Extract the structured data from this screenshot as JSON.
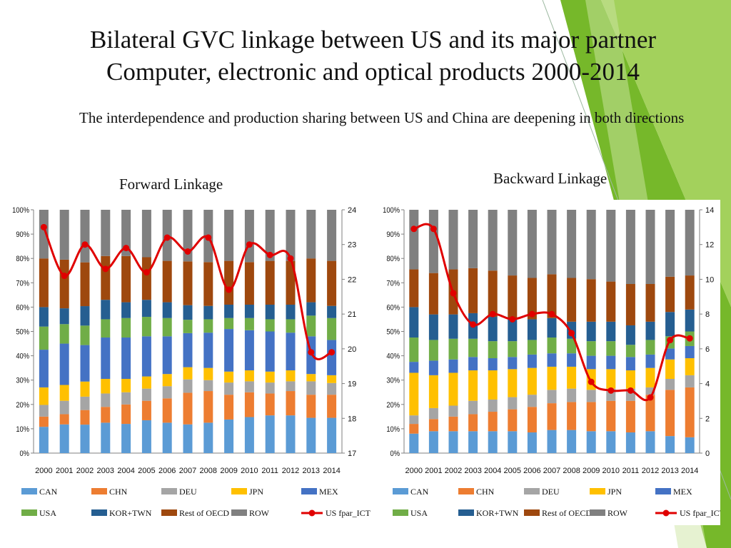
{
  "slide": {
    "title_line1": "Bilateral GVC linkage between US and its major partner",
    "title_line2": "Computer, electronic and optical products 2000-2014",
    "subtitle": "The interdependence and production sharing between US and China are deepening in both directions",
    "colors": {
      "green_dark": "#76b82a",
      "green_light": "#a3d15c"
    }
  },
  "chart_data": [
    {
      "type": "bar",
      "stacked": true,
      "title": "Forward Linkage",
      "categories": [
        "2000",
        "2001",
        "2002",
        "2003",
        "2004",
        "2005",
        "2006",
        "2007",
        "2008",
        "2009",
        "2010",
        "2011",
        "2012",
        "2013",
        "2014"
      ],
      "ylim": [
        0,
        100
      ],
      "y_ticks": [
        "0%",
        "10%",
        "20%",
        "30%",
        "40%",
        "50%",
        "60%",
        "70%",
        "80%",
        "90%",
        "100%"
      ],
      "y2lim": [
        17,
        24
      ],
      "y2_ticks": [
        "17",
        "18",
        "19",
        "20",
        "21",
        "22",
        "23",
        "24"
      ],
      "series": [
        {
          "name": "CAN",
          "color": "#5b9bd5",
          "values": [
            10.8,
            11.8,
            11.7,
            12.5,
            12.0,
            13.5,
            12.5,
            11.8,
            12.5,
            13.8,
            14.8,
            15.5,
            15.5,
            14.5,
            14.5
          ]
        },
        {
          "name": "CHN",
          "color": "#ed7d31",
          "values": [
            4.2,
            4.2,
            6.0,
            6.5,
            8.0,
            8.0,
            10.0,
            13.0,
            13.0,
            10.2,
            10.2,
            9.0,
            10.0,
            9.5,
            9.5
          ]
        },
        {
          "name": "DEU",
          "color": "#a5a5a5",
          "values": [
            4.8,
            5.5,
            5.5,
            5.5,
            5.0,
            5.0,
            5.0,
            5.5,
            4.5,
            5.0,
            4.5,
            4.5,
            4.0,
            5.5,
            4.8
          ]
        },
        {
          "name": "JPN",
          "color": "#ffc000",
          "values": [
            7.2,
            6.5,
            6.2,
            6.0,
            5.5,
            5.0,
            5.0,
            5.0,
            5.0,
            4.5,
            4.5,
            4.5,
            4.5,
            3.0,
            3.2
          ]
        },
        {
          "name": "MEX",
          "color": "#4472c4",
          "values": [
            15.5,
            17.0,
            15.0,
            17.0,
            17.0,
            16.5,
            15.5,
            14.0,
            14.5,
            17.5,
            16.5,
            16.5,
            15.5,
            15.5,
            14.5
          ]
        },
        {
          "name": "USA",
          "color": "#70ad47",
          "values": [
            9.5,
            8.0,
            8.0,
            7.5,
            8.0,
            8.0,
            7.5,
            5.5,
            5.5,
            4.5,
            5.0,
            5.0,
            5.5,
            8.5,
            9.0
          ]
        },
        {
          "name": "KOR+TWN",
          "color": "#255e91",
          "values": [
            8.0,
            6.5,
            8.0,
            8.0,
            6.5,
            7.0,
            6.5,
            6.0,
            5.5,
            5.5,
            5.5,
            6.0,
            6.0,
            5.5,
            5.0
          ]
        },
        {
          "name": "Rest of OECD",
          "color": "#9e480e",
          "values": [
            20.0,
            20.0,
            18.0,
            18.0,
            19.0,
            17.5,
            17.0,
            18.0,
            18.0,
            18.0,
            17.5,
            18.0,
            18.0,
            18.0,
            18.5
          ]
        },
        {
          "name": "ROW",
          "color": "#808080",
          "values": [
            20.0,
            20.5,
            21.6,
            19.0,
            19.0,
            19.5,
            21.0,
            21.2,
            21.5,
            21.0,
            21.5,
            21.0,
            21.0,
            20.0,
            21.0
          ]
        }
      ],
      "line_series": {
        "name": "US fpar_ICT",
        "color": "#e00000",
        "axis": "secondary",
        "values": [
          23.5,
          22.1,
          23.0,
          22.3,
          22.9,
          22.2,
          23.2,
          22.8,
          23.2,
          21.7,
          23.0,
          22.7,
          22.6,
          19.9,
          19.9
        ]
      }
    },
    {
      "type": "bar",
      "stacked": true,
      "title": "Backward Linkage",
      "categories": [
        "2000",
        "2001",
        "2002",
        "2003",
        "2004",
        "2005",
        "2006",
        "2007",
        "2008",
        "2009",
        "2010",
        "2011",
        "2012",
        "2013",
        "2014"
      ],
      "ylim": [
        0,
        100
      ],
      "y_ticks": [
        "0%",
        "10%",
        "20%",
        "30%",
        "40%",
        "50%",
        "60%",
        "70%",
        "80%",
        "90%",
        "100%"
      ],
      "y2lim": [
        0,
        14
      ],
      "y2_ticks": [
        "0",
        "2",
        "4",
        "6",
        "8",
        "10",
        "12",
        "14"
      ],
      "series": [
        {
          "name": "CAN",
          "color": "#5b9bd5",
          "values": [
            8.0,
            9.0,
            9.0,
            9.0,
            9.0,
            9.0,
            8.5,
            9.5,
            9.5,
            9.0,
            9.0,
            8.5,
            9.0,
            7.0,
            6.5
          ]
        },
        {
          "name": "CHN",
          "color": "#ed7d31",
          "values": [
            4.0,
            5.0,
            6.0,
            7.0,
            8.0,
            9.0,
            10.5,
            11.0,
            11.5,
            12.0,
            12.5,
            13.0,
            15.0,
            19.0,
            20.5
          ]
        },
        {
          "name": "DEU",
          "color": "#a5a5a5",
          "values": [
            3.5,
            4.5,
            4.5,
            5.5,
            5.0,
            5.0,
            5.0,
            5.5,
            5.5,
            5.0,
            5.0,
            5.0,
            3.0,
            4.5,
            5.0
          ]
        },
        {
          "name": "JPN",
          "color": "#ffc000",
          "values": [
            17.5,
            13.5,
            13.5,
            12.5,
            12.0,
            11.5,
            11.0,
            9.5,
            9.0,
            8.5,
            8.0,
            7.5,
            8.0,
            8.0,
            7.0
          ]
        },
        {
          "name": "MEX",
          "color": "#4472c4",
          "values": [
            4.5,
            6.0,
            5.5,
            5.5,
            5.0,
            5.0,
            5.5,
            5.5,
            5.5,
            5.5,
            5.5,
            5.5,
            5.5,
            4.5,
            5.0
          ]
        },
        {
          "name": "USA",
          "color": "#70ad47",
          "values": [
            10.0,
            8.5,
            8.5,
            7.5,
            7.0,
            6.5,
            6.0,
            6.5,
            6.0,
            6.0,
            6.0,
            5.0,
            6.0,
            5.0,
            6.0
          ]
        },
        {
          "name": "KOR+TWN",
          "color": "#255e91",
          "values": [
            12.5,
            10.5,
            10.0,
            10.5,
            10.0,
            9.0,
            8.5,
            8.0,
            7.0,
            8.0,
            8.0,
            8.0,
            7.5,
            10.0,
            9.0
          ]
        },
        {
          "name": "Rest of OECD",
          "color": "#9e480e",
          "values": [
            15.5,
            17.0,
            18.5,
            18.5,
            19.0,
            18.0,
            17.0,
            18.0,
            18.0,
            17.5,
            16.5,
            17.0,
            15.5,
            14.5,
            14.0
          ]
        },
        {
          "name": "ROW",
          "color": "#808080",
          "values": [
            24.5,
            26.0,
            24.5,
            24.0,
            25.0,
            27.0,
            28.0,
            26.5,
            28.0,
            28.5,
            29.5,
            30.5,
            30.5,
            27.5,
            27.0
          ]
        }
      ],
      "line_series": {
        "name": "US fpar_ICT",
        "color": "#e00000",
        "axis": "secondary",
        "values": [
          12.9,
          12.9,
          9.2,
          7.4,
          8.0,
          7.7,
          8.0,
          8.0,
          6.9,
          4.1,
          3.6,
          3.6,
          3.2,
          6.5,
          6.6
        ]
      }
    }
  ]
}
